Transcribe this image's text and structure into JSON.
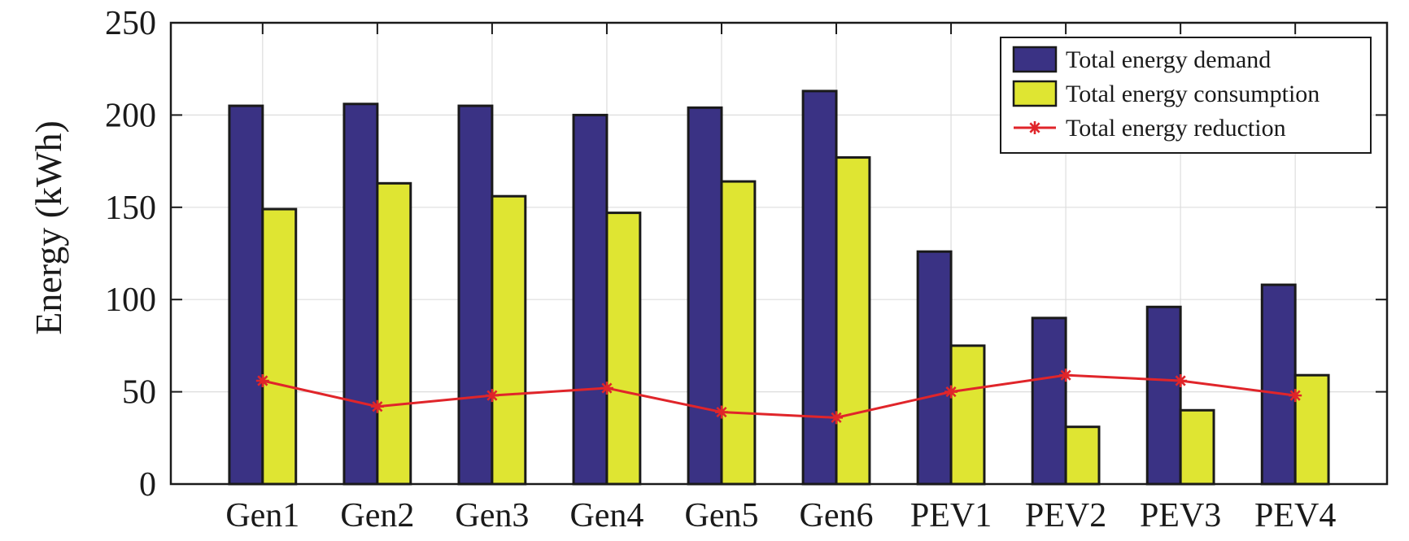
{
  "chart_data": {
    "type": "bar",
    "title": "",
    "xlabel": "",
    "ylabel": "Energy (kWh)",
    "ylim": [
      0,
      250
    ],
    "yticks": [
      0,
      50,
      100,
      150,
      200,
      250
    ],
    "grid": true,
    "legend_position": "top-right",
    "categories": [
      "Gen1",
      "Gen2",
      "Gen3",
      "Gen4",
      "Gen5",
      "Gen6",
      "PEV1",
      "PEV2",
      "PEV3",
      "PEV4"
    ],
    "series": [
      {
        "name": "Total energy demand",
        "kind": "bar",
        "color": "#3a3284",
        "values": [
          205,
          206,
          205,
          200,
          204,
          213,
          126,
          90,
          96,
          108
        ]
      },
      {
        "name": "Total energy consumption",
        "kind": "bar",
        "color": "#dfe532",
        "values": [
          149,
          163,
          156,
          147,
          164,
          177,
          75,
          31,
          40,
          59
        ]
      },
      {
        "name": "Total energy reduction",
        "kind": "line",
        "marker": "asterisk",
        "color": "#e0252a",
        "values": [
          56,
          42,
          48,
          52,
          39,
          36,
          50,
          59,
          56,
          48
        ]
      }
    ]
  }
}
